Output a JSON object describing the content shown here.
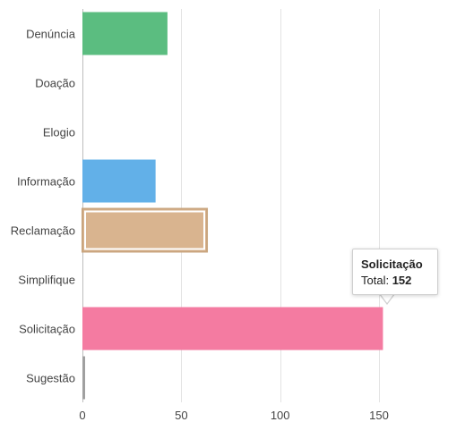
{
  "chart_data": {
    "type": "bar",
    "orientation": "horizontal",
    "categories": [
      "Denúncia",
      "Doação",
      "Elogio",
      "Informação",
      "Reclamação",
      "Simplifique",
      "Solicitação",
      "Sugestão"
    ],
    "values": [
      43,
      0,
      0,
      37,
      63,
      0,
      152,
      1
    ],
    "colors": [
      "#5bbd80",
      "#cccccc",
      "#cccccc",
      "#62b0e8",
      "#d9b48f",
      "#cccccc",
      "#f47ba1",
      "#a0a0a0"
    ],
    "highlighted": "Reclamação",
    "x_ticks": [
      0,
      50,
      100,
      150
    ],
    "xlim": [
      0,
      190
    ],
    "grid": true,
    "title": "",
    "xlabel": "",
    "ylabel": ""
  },
  "tooltip": {
    "title": "Solicitação",
    "label": "Total:",
    "value": "152"
  }
}
